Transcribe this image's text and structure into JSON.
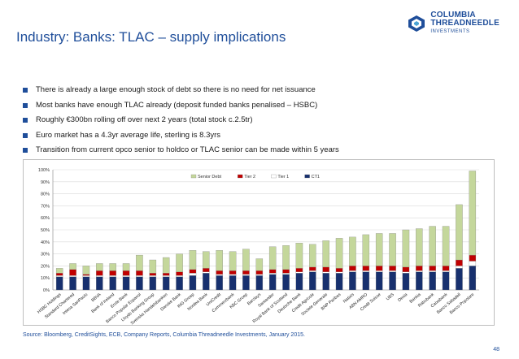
{
  "slide": {
    "title": "Industry: Banks: TLAC – supply implications",
    "logo": {
      "line1": "COLUMBIA",
      "line2": "THREADNEEDLE",
      "line3": "INVESTMENTS"
    },
    "bullets": [
      "There is already a large enough stock of debt so there is no need for net issuance",
      "Most banks have enough TLAC already (deposit funded banks penalised – HSBC)",
      "Roughly €300bn rolling off over next 2 years (total stock c.2.5tr)",
      "Euro market has a 4.3yr average life, sterling is 8.3yrs",
      "Transition from current opco senior to holdco or TLAC senior can be made within 5 years"
    ],
    "source": "Source: Bloomberg, CreditSights, ECB, Company Reports, Columbia Threadneedle Investments, January 2015.",
    "page_number": "48"
  },
  "colors": {
    "senior_debt": "#c4d79b",
    "tier2": "#c00000",
    "tier1": "#ffffff",
    "ct1": "#17306e",
    "title": "#1f4e9a"
  },
  "chart_data": {
    "type": "bar",
    "stacked": true,
    "categories": [
      "HSBC Holdings",
      "Standard Chartered",
      "Intesa SanPaolo",
      "BBVA",
      "Bank of Ireland",
      "Erste Bank",
      "Banco Popular Espanol",
      "Lloyds Banking Group",
      "Svenska Handelsbanken",
      "Danske Bank",
      "ING Groep",
      "Nordea Bank",
      "UniCredit",
      "Commerzbank",
      "KBC Groep",
      "Barclays",
      "Santander",
      "Royal Bank of Scotland",
      "Deutsche Bank",
      "Credit Agricole",
      "Societe Generale",
      "BNP Paribas",
      "Natixis",
      "ABN AMRO",
      "Credit Suisse",
      "UBS",
      "Dexia",
      "Bankia",
      "Rabobank",
      "Caixabank",
      "Banco Sabadell",
      "Banco Popolare"
    ],
    "series": [
      {
        "name": "Senior Debt",
        "values": [
          4,
          5,
          7,
          6,
          6,
          6,
          13,
          11,
          13,
          15,
          16,
          14,
          17,
          16,
          18,
          10,
          19,
          20,
          21,
          19,
          22,
          25,
          24,
          26,
          27,
          27,
          31,
          31,
          33,
          33,
          46,
          70
        ]
      },
      {
        "name": "Tier 2",
        "values": [
          2,
          5,
          1,
          4,
          4,
          4,
          4,
          2,
          2,
          3,
          3,
          3,
          3,
          3,
          3,
          3,
          3,
          3,
          3,
          3,
          4,
          3,
          4,
          4,
          4,
          4,
          4,
          4,
          4,
          4,
          5,
          5
        ]
      },
      {
        "name": "Tier 1",
        "values": [
          1,
          1,
          1,
          1,
          1,
          1,
          1,
          1,
          1,
          1,
          2,
          1,
          1,
          1,
          1,
          1,
          1,
          1,
          1,
          1,
          1,
          1,
          1,
          1,
          1,
          1,
          1,
          1,
          1,
          1,
          2,
          4
        ]
      },
      {
        "name": "CT1",
        "values": [
          11,
          11,
          11,
          11,
          11,
          11,
          11,
          11,
          11,
          11,
          12,
          14,
          12,
          12,
          12,
          12,
          13,
          13,
          14,
          15,
          14,
          14,
          15,
          15,
          15,
          15,
          14,
          15,
          15,
          15,
          18,
          20
        ]
      }
    ],
    "ylim": [
      0,
      100
    ],
    "yticks": [
      "0%",
      "10%",
      "20%",
      "30%",
      "40%",
      "50%",
      "60%",
      "70%",
      "80%",
      "90%",
      "100%"
    ],
    "xlabel": "",
    "ylabel": "",
    "legend": {
      "position": "top-right",
      "entries": [
        "Senior Debt",
        "Tier 2",
        "Tier 1",
        "CT1"
      ]
    },
    "grid": true
  }
}
